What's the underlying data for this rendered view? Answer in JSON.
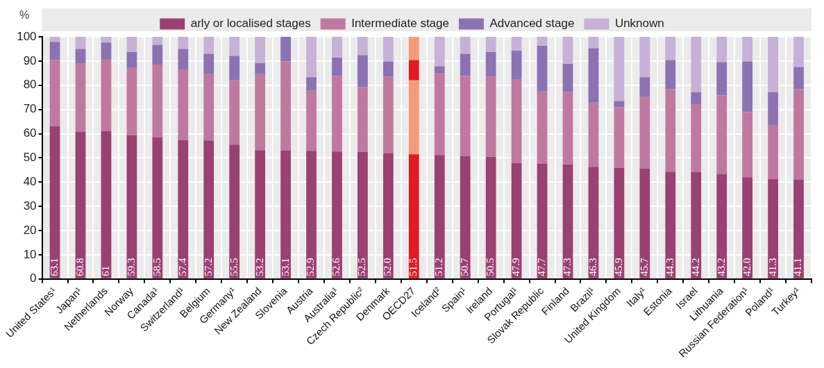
{
  "chart_data": {
    "type": "bar",
    "stacked": true,
    "ylabel": "%",
    "legend": "top",
    "grid": true,
    "ylim": [
      0,
      100
    ],
    "yticks": [
      0,
      10,
      20,
      30,
      40,
      50,
      60,
      70,
      80,
      90,
      100
    ],
    "categories": [
      "United States¹",
      "Japan¹",
      "Netherlands",
      "Norway",
      "Canada¹",
      "Switzerland¹",
      "Belgium",
      "Germany¹",
      "New Zealand",
      "Slovenia",
      "Austria",
      "Australia¹",
      "Czech Republic²",
      "Denmark",
      "OECD27",
      "Iceland²",
      "Spain¹",
      "Ireland",
      "Portugal¹",
      "Slovak Republic",
      "Finland",
      "Brazil¹",
      "United Kingdom",
      "Italy¹",
      "Estonia",
      "Israel",
      "Lithuania",
      "Russian Federation¹",
      "Poland¹",
      "Turkey¹"
    ],
    "series": [
      {
        "name": "arly or localised stages",
        "color": "#9b4073",
        "values": [
          63.1,
          60.8,
          61,
          59.3,
          58.5,
          57.4,
          57.2,
          55.5,
          53.2,
          53.1,
          52.9,
          52.6,
          52.5,
          52.0,
          51.5,
          51.2,
          50.7,
          50.5,
          47.9,
          47.7,
          47.3,
          46.3,
          45.9,
          45.7,
          44.3,
          44.2,
          43.2,
          42.0,
          41.3,
          41.1
        ],
        "value_labels": [
          "63.1",
          "60.8",
          "61",
          "59.3",
          "58.5",
          "57.4",
          "57.2",
          "55.5",
          "53.2",
          "53.1",
          "52.9",
          "52.6",
          "52.5",
          "52.0",
          "51.5",
          "51.2",
          "50.7",
          "50.5",
          "47.9",
          "47.7",
          "47.3",
          "46.3",
          "45.9",
          "45.7",
          "44.3",
          "44.2",
          "43.2",
          "42.0",
          "41.3",
          "41.1"
        ],
        "colors": [
          "#9b4073",
          "#9b4073",
          "#9b4073",
          "#9b4073",
          "#9b4073",
          "#9b4073",
          "#9b4073",
          "#9b4073",
          "#9b4073",
          "#9b4073",
          "#9b4073",
          "#9b4073",
          "#9b4073",
          "#9b4073",
          "#e01b22",
          "#9b4073",
          "#9b4073",
          "#9b4073",
          "#9b4073",
          "#9b4073",
          "#9b4073",
          "#9b4073",
          "#9b4073",
          "#9b4073",
          "#9b4073",
          "#9b4073",
          "#9b4073",
          "#9b4073",
          "#9b4073",
          "#9b4073"
        ]
      },
      {
        "name": "Intermediate stage",
        "color": "#c0799e",
        "values": [
          27.3,
          28.3,
          29.8,
          27.9,
          30.0,
          29.1,
          27.4,
          26.5,
          31.4,
          36.7,
          24.8,
          31.3,
          26.8,
          31.6,
          30.5,
          33.7,
          33.2,
          33.1,
          34.4,
          29.7,
          29.8,
          26.5,
          25.0,
          29.4,
          34.1,
          28.0,
          32.6,
          26.9,
          22.1,
          37.3
        ],
        "colors": [
          "#c0799e",
          "#c0799e",
          "#c0799e",
          "#c0799e",
          "#c0799e",
          "#c0799e",
          "#c0799e",
          "#c0799e",
          "#c0799e",
          "#c0799e",
          "#c0799e",
          "#c0799e",
          "#c0799e",
          "#c0799e",
          "#f59a7a",
          "#c0799e",
          "#c0799e",
          "#c0799e",
          "#c0799e",
          "#c0799e",
          "#c0799e",
          "#c0799e",
          "#c0799e",
          "#c0799e",
          "#c0799e",
          "#c0799e",
          "#c0799e",
          "#c0799e",
          "#c0799e",
          "#c0799e"
        ]
      },
      {
        "name": "Advanced stage",
        "color": "#8b72b2",
        "values": [
          7.5,
          5.9,
          6.8,
          6.5,
          8.1,
          8.5,
          8.4,
          10.1,
          4.5,
          10.2,
          5.6,
          7.5,
          13.1,
          6.2,
          8.4,
          2.9,
          9.1,
          10.1,
          12.0,
          18.9,
          11.7,
          22.5,
          2.6,
          8.2,
          12.0,
          4.9,
          13.7,
          20.9,
          13.7,
          9.1
        ],
        "colors": [
          "#8b72b2",
          "#8b72b2",
          "#8b72b2",
          "#8b72b2",
          "#8b72b2",
          "#8b72b2",
          "#8b72b2",
          "#8b72b2",
          "#8b72b2",
          "#8b72b2",
          "#8b72b2",
          "#8b72b2",
          "#8b72b2",
          "#8b72b2",
          "#e01b22",
          "#8b72b2",
          "#8b72b2",
          "#8b72b2",
          "#8b72b2",
          "#8b72b2",
          "#8b72b2",
          "#8b72b2",
          "#8b72b2",
          "#8b72b2",
          "#8b72b2",
          "#8b72b2",
          "#8b72b2",
          "#8b72b2",
          "#8b72b2",
          "#8b72b2"
        ]
      },
      {
        "name": "Unknown",
        "color": "#c7b1d7",
        "values": [
          2.1,
          5.0,
          2.4,
          6.3,
          3.4,
          5.0,
          7.0,
          7.9,
          10.9,
          0,
          16.7,
          8.6,
          7.6,
          10.2,
          9.6,
          12.2,
          7.0,
          6.3,
          5.7,
          3.7,
          11.2,
          4.7,
          26.5,
          16.7,
          9.6,
          22.9,
          10.5,
          10.2,
          22.9,
          12.5
        ],
        "colors": [
          "#c7b1d7",
          "#c7b1d7",
          "#c7b1d7",
          "#c7b1d7",
          "#c7b1d7",
          "#c7b1d7",
          "#c7b1d7",
          "#c7b1d7",
          "#c7b1d7",
          "#c7b1d7",
          "#c7b1d7",
          "#c7b1d7",
          "#c7b1d7",
          "#c7b1d7",
          "#f59a7a",
          "#c7b1d7",
          "#c7b1d7",
          "#c7b1d7",
          "#c7b1d7",
          "#c7b1d7",
          "#c7b1d7",
          "#c7b1d7",
          "#c7b1d7",
          "#c7b1d7",
          "#c7b1d7",
          "#c7b1d7",
          "#c7b1d7",
          "#c7b1d7",
          "#c7b1d7",
          "#c7b1d7"
        ]
      }
    ]
  }
}
